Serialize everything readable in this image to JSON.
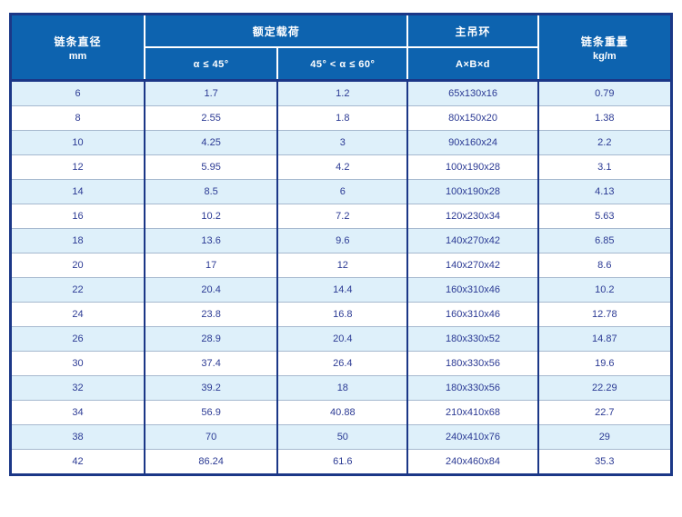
{
  "table": {
    "headers": {
      "diameter_title": "链条直径",
      "diameter_unit": "mm",
      "rated_load_title": "额定载荷",
      "rated_load_sub1": "α ≤ 45°",
      "rated_load_sub2": "45° < α ≤ 60°",
      "main_ring_title": "主吊环",
      "main_ring_sub": "A×B×d",
      "weight_title": "链条重量",
      "weight_unit": "kg/m"
    },
    "rows": [
      {
        "diameter": "6",
        "load_45": "1.7",
        "load_60": "1.2",
        "ring": "65x130x16",
        "weight": "0.79"
      },
      {
        "diameter": "8",
        "load_45": "2.55",
        "load_60": "1.8",
        "ring": "80x150x20",
        "weight": "1.38"
      },
      {
        "diameter": "10",
        "load_45": "4.25",
        "load_60": "3",
        "ring": "90x160x24",
        "weight": "2.2"
      },
      {
        "diameter": "12",
        "load_45": "5.95",
        "load_60": "4.2",
        "ring": "100x190x28",
        "weight": "3.1"
      },
      {
        "diameter": "14",
        "load_45": "8.5",
        "load_60": "6",
        "ring": "100x190x28",
        "weight": "4.13"
      },
      {
        "diameter": "16",
        "load_45": "10.2",
        "load_60": "7.2",
        "ring": "120x230x34",
        "weight": "5.63"
      },
      {
        "diameter": "18",
        "load_45": "13.6",
        "load_60": "9.6",
        "ring": "140x270x42",
        "weight": "6.85"
      },
      {
        "diameter": "20",
        "load_45": "17",
        "load_60": "12",
        "ring": "140x270x42",
        "weight": "8.6"
      },
      {
        "diameter": "22",
        "load_45": "20.4",
        "load_60": "14.4",
        "ring": "160x310x46",
        "weight": "10.2"
      },
      {
        "diameter": "24",
        "load_45": "23.8",
        "load_60": "16.8",
        "ring": "160x310x46",
        "weight": "12.78"
      },
      {
        "diameter": "26",
        "load_45": "28.9",
        "load_60": "20.4",
        "ring": "180x330x52",
        "weight": "14.87"
      },
      {
        "diameter": "30",
        "load_45": "37.4",
        "load_60": "26.4",
        "ring": "180x330x56",
        "weight": "19.6"
      },
      {
        "diameter": "32",
        "load_45": "39.2",
        "load_60": "18",
        "ring": "180x330x56",
        "weight": "22.29"
      },
      {
        "diameter": "34",
        "load_45": "56.9",
        "load_60": "40.88",
        "ring": "210x410x68",
        "weight": "22.7"
      },
      {
        "diameter": "38",
        "load_45": "70",
        "load_60": "50",
        "ring": "240x410x76",
        "weight": "29"
      },
      {
        "diameter": "42",
        "load_45": "86.24",
        "load_60": "61.6",
        "ring": "240x460x84",
        "weight": "35.3"
      }
    ]
  },
  "colors": {
    "header_bg": "#0d63af",
    "header_text": "#ffffff",
    "border_navy": "#1b3787",
    "row_alt_bg": "#def0fa",
    "row_line": "#a6b9cf",
    "body_text": "#2b3a94"
  }
}
